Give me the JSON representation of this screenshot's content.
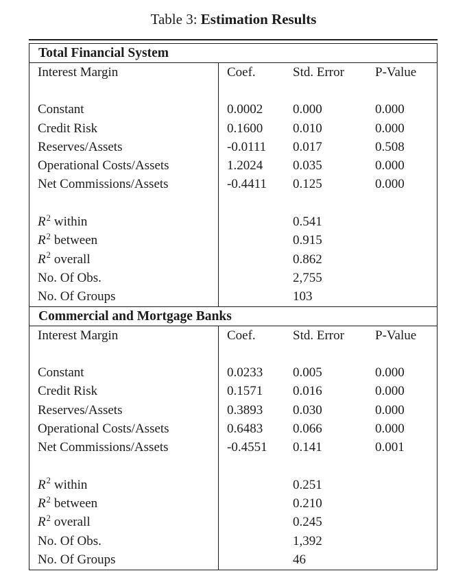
{
  "title": {
    "prefix": "Table 3:",
    "main": "Estimation Results"
  },
  "columns": {
    "label": "Interest Margin",
    "coef": "Coef.",
    "std_error": "Std. Error",
    "p_value": "P-Value"
  },
  "panels": [
    {
      "name": "Total Financial System",
      "coefficients": [
        {
          "label": "Constant",
          "coef": "0.0002",
          "std_error": "0.000",
          "p_value": "0.000"
        },
        {
          "label": "Credit Risk",
          "coef": "0.1600",
          "std_error": "0.010",
          "p_value": "0.000"
        },
        {
          "label": "Reserves/Assets",
          "coef": "-0.0111",
          "std_error": "0.017",
          "p_value": "0.508"
        },
        {
          "label": "Operational Costs/Assets",
          "coef": "1.2024",
          "std_error": "0.035",
          "p_value": "0.000"
        },
        {
          "label": "Net Commissions/Assets",
          "coef": "-0.4411",
          "std_error": "0.125",
          "p_value": "0.000"
        }
      ],
      "statistics": [
        {
          "base": "R",
          "sup": "2",
          "rest": "within",
          "value": "0.541"
        },
        {
          "base": "R",
          "sup": "2",
          "rest": "between",
          "value": "0.915"
        },
        {
          "base": "R",
          "sup": "2",
          "rest": "overall",
          "value": "0.862"
        },
        {
          "base": "No. Of Obs.",
          "sup": "",
          "rest": "",
          "value": "2,755"
        },
        {
          "base": "No. Of Groups",
          "sup": "",
          "rest": "",
          "value": "103"
        }
      ]
    },
    {
      "name": "Commercial and Mortgage Banks",
      "coefficients": [
        {
          "label": "Constant",
          "coef": "0.0233",
          "std_error": "0.005",
          "p_value": "0.000"
        },
        {
          "label": "Credit Risk",
          "coef": "0.1571",
          "std_error": "0.016",
          "p_value": "0.000"
        },
        {
          "label": "Reserves/Assets",
          "coef": "0.3893",
          "std_error": "0.030",
          "p_value": "0.000"
        },
        {
          "label": "Operational Costs/Assets",
          "coef": "0.6483",
          "std_error": "0.066",
          "p_value": "0.000"
        },
        {
          "label": "Net Commissions/Assets",
          "coef": "-0.4551",
          "std_error": "0.141",
          "p_value": "0.001"
        }
      ],
      "statistics": [
        {
          "base": "R",
          "sup": "2",
          "rest": "within",
          "value": "0.251"
        },
        {
          "base": "R",
          "sup": "2",
          "rest": "between",
          "value": "0.210"
        },
        {
          "base": "R",
          "sup": "2",
          "rest": "overall",
          "value": "0.245"
        },
        {
          "base": "No. Of Obs.",
          "sup": "",
          "rest": "",
          "value": "1,392"
        },
        {
          "base": "No. Of Groups",
          "sup": "",
          "rest": "",
          "value": "46"
        }
      ]
    }
  ],
  "colors": {
    "text": "#1c1c1c",
    "border": "#1c1c1c",
    "background": "#ffffff"
  }
}
